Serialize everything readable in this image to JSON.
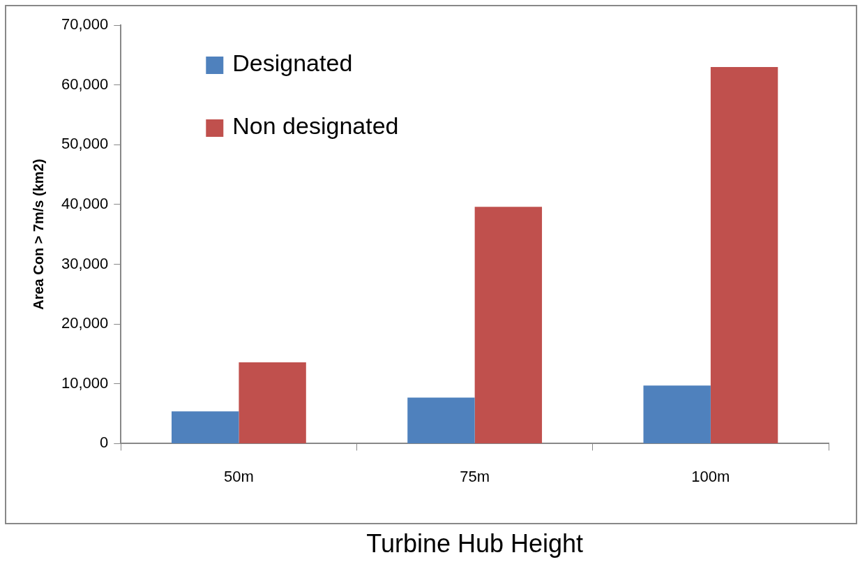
{
  "chart_data": {
    "type": "bar",
    "xlabel": "Turbine Hub Height",
    "ylabel": "Area Con > 7m/s (km2)",
    "categories": [
      "50m",
      "75m",
      "100m"
    ],
    "series": [
      {
        "name": "Designated",
        "color": "#4f81bd",
        "values": [
          5400,
          7700,
          9700
        ]
      },
      {
        "name": "Non designated",
        "color": "#c0504d",
        "values": [
          13600,
          39600,
          63000
        ]
      }
    ],
    "ylim": [
      0,
      70000
    ],
    "yticks": [
      {
        "value": 0,
        "label": "0"
      },
      {
        "value": 10000,
        "label": "10,000"
      },
      {
        "value": 20000,
        "label": "20,000"
      },
      {
        "value": 30000,
        "label": "30,000"
      },
      {
        "value": 40000,
        "label": "40,000"
      },
      {
        "value": 50000,
        "label": "50,000"
      },
      {
        "value": 60000,
        "label": "60,000"
      },
      {
        "value": 70000,
        "label": "70,000"
      }
    ],
    "grid": false,
    "legend": "top left"
  }
}
